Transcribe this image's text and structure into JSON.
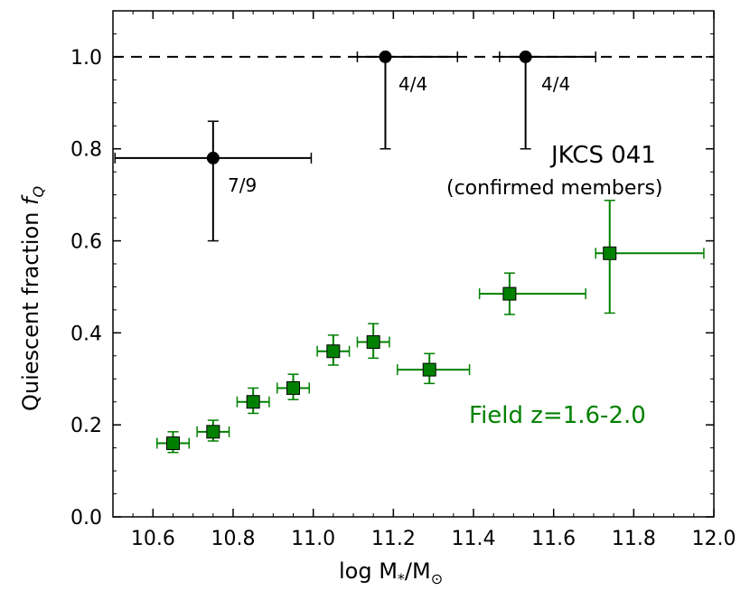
{
  "chart_data": {
    "type": "scatter",
    "title": "",
    "xlabel": "log M*/M☉",
    "ylabel": "Quiescent fraction fQ",
    "xlim": [
      10.5,
      12.0
    ],
    "ylim": [
      0.0,
      1.1
    ],
    "xticks": [
      10.6,
      10.8,
      11.0,
      11.2,
      11.4,
      11.6,
      11.8,
      12.0
    ],
    "yticks": [
      0.0,
      0.2,
      0.4,
      0.6,
      0.8,
      1.0
    ],
    "xtick_labels": [
      "10.6",
      "10.8",
      "11.0",
      "11.2",
      "11.4",
      "11.6",
      "11.8",
      "12.0"
    ],
    "ytick_labels": [
      "0.0",
      "0.2",
      "0.4",
      "0.6",
      "0.8",
      "1.0"
    ],
    "reference_line": {
      "y": 1.0,
      "style": "dashed"
    },
    "series": [
      {
        "name": "JKCS 041 (confirmed members)",
        "marker": "circle",
        "color": "#000000",
        "points": [
          {
            "x": 10.75,
            "y": 0.78,
            "xerr": [
              0.245,
              0.245
            ],
            "yerr": [
              0.18,
              0.08
            ],
            "label": "7/9"
          },
          {
            "x": 11.18,
            "y": 1.0,
            "xerr": [
              0.07,
              0.18
            ],
            "yerr": [
              0.2,
              0.0
            ],
            "label": "4/4"
          },
          {
            "x": 11.53,
            "y": 1.0,
            "xerr": [
              0.065,
              0.175
            ],
            "yerr": [
              0.2,
              0.0
            ],
            "label": "4/4"
          }
        ]
      },
      {
        "name": "Field z=1.6-2.0",
        "marker": "square",
        "color": "#008000",
        "points": [
          {
            "x": 10.65,
            "y": 0.16,
            "xerr": [
              0.04,
              0.04
            ],
            "yerr": [
              0.02,
              0.025
            ]
          },
          {
            "x": 10.75,
            "y": 0.185,
            "xerr": [
              0.04,
              0.04
            ],
            "yerr": [
              0.02,
              0.025
            ]
          },
          {
            "x": 10.85,
            "y": 0.25,
            "xerr": [
              0.04,
              0.04
            ],
            "yerr": [
              0.025,
              0.03
            ]
          },
          {
            "x": 10.95,
            "y": 0.28,
            "xerr": [
              0.04,
              0.04
            ],
            "yerr": [
              0.025,
              0.03
            ]
          },
          {
            "x": 11.05,
            "y": 0.36,
            "xerr": [
              0.04,
              0.04
            ],
            "yerr": [
              0.03,
              0.035
            ]
          },
          {
            "x": 11.15,
            "y": 0.38,
            "xerr": [
              0.04,
              0.04
            ],
            "yerr": [
              0.035,
              0.04
            ]
          },
          {
            "x": 11.29,
            "y": 0.32,
            "xerr": [
              0.08,
              0.1
            ],
            "yerr": [
              0.03,
              0.035
            ]
          },
          {
            "x": 11.49,
            "y": 0.485,
            "xerr": [
              0.075,
              0.19
            ],
            "yerr": [
              0.045,
              0.045
            ]
          },
          {
            "x": 11.74,
            "y": 0.573,
            "xerr": [
              0.035,
              0.235
            ],
            "yerr": [
              0.13,
              0.115
            ]
          }
        ]
      }
    ],
    "annotations": [
      {
        "text": "JKCS 041",
        "x": 11.78,
        "y": 0.785
      },
      {
        "text": "(confirmed members)",
        "x": 11.66,
        "y": 0.715
      },
      {
        "text": "Field z=1.6-2.0",
        "x": 11.62,
        "y": 0.215
      }
    ]
  },
  "labels": {
    "xlabel_main": "log M",
    "xlabel_sub1": "*",
    "xlabel_mid": "/M",
    "xlabel_sub2": "⊙",
    "ylabel_main": "Quiescent fraction ",
    "ylabel_f": "f",
    "ylabel_sub": "Q",
    "annot_jkcs": "JKCS 041",
    "annot_members": "(confirmed members)",
    "annot_field": "Field z=1.6-2.0",
    "point_label_1": "7/9",
    "point_label_2": "4/4",
    "point_label_3": "4/4"
  },
  "colors": {
    "axis": "#000000",
    "cluster": "#000000",
    "field": "#008000"
  }
}
